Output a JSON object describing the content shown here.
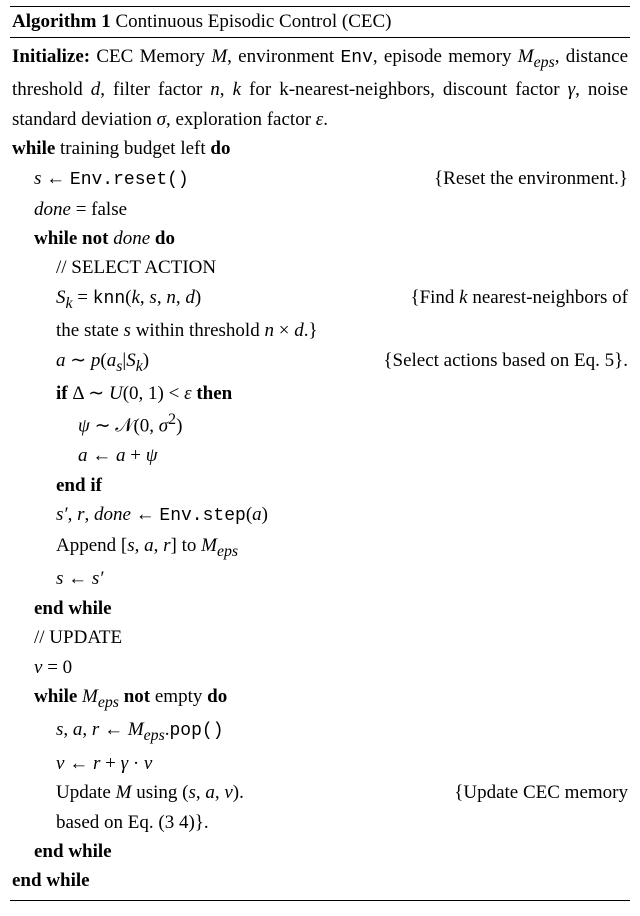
{
  "algorithm": {
    "number": "1",
    "title_prefix": "Algorithm",
    "title_name": "Continuous Episodic Control (CEC)",
    "initialize_kw": "Initialize:",
    "initialize_body": "CEC Memory M, environment Env, episode memory M_eps, distance threshold d, filter factor n, k for k-nearest-neighbors, discount factor γ, noise standard deviation σ, exploration factor ϵ.",
    "kw": {
      "while": "while",
      "do": "do",
      "not": "not",
      "if": "if",
      "then": "then",
      "endif": "end if",
      "endwhile": "end while"
    },
    "lines": {
      "while1_cond": "training budget left",
      "reset_lhs": "s ← ",
      "reset_call": "Env.reset()",
      "reset_comment": "{Reset the environment.}",
      "done_false": "done = false",
      "while2_cond_var": "done",
      "select_action": "// SELECT ACTION",
      "knn_line": "S_k = knn(k, s, n, d)",
      "knn_comment_a": "{Find k nearest-neighbors of",
      "knn_comment_b": "the state s within threshold n × d.}",
      "sample_a": "a ∼ p(a_s | S_k)",
      "sample_a_comment": "{Select actions based on Eq. 5}.",
      "if_cond": "Δ ∼ U(0, 1) < ϵ",
      "psi_sample": "ψ ∼ 𝒩(0, σ²)",
      "a_plus_psi": "a ← a + ψ",
      "step_lhs": "s′, r, done ← ",
      "step_call": "Env.step",
      "step_arg": "(a)",
      "append": "Append [s, a, r] to M_eps",
      "s_assign": "s ← s′",
      "update_hdr": "// UPDATE",
      "v_zero": "v = 0",
      "while3_cond_a": "M_eps",
      "while3_cond_b": "empty",
      "pop_lhs": "s, a, r ← M_eps.",
      "pop_call": "pop()",
      "v_update": "v ← r + γ · v",
      "update_M": "Update M using (s, a, v).",
      "update_M_comment_a": "{Update CEC memory",
      "update_M_comment_b": "based on Eq. (3 4)}."
    }
  },
  "colors": {
    "text": "#000000",
    "bg": "#ffffff",
    "rule": "#000000"
  },
  "typography": {
    "body_font": "Times New Roman",
    "body_size_pt": 11,
    "mono_font": "Courier New"
  }
}
